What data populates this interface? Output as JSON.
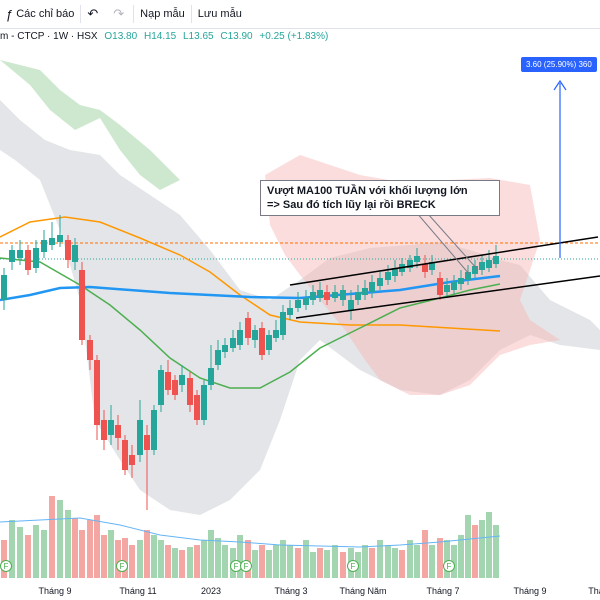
{
  "toolbar": {
    "alerts_label": "Các chỉ báo",
    "templates_label": "Nạp mẫu",
    "save_label": "Lưu mẫu"
  },
  "legend": {
    "symbol": "m - CTCP · 1W · HSX",
    "open": "O13.80",
    "high": "H14.15",
    "low": "L13.65",
    "close": "C13.90",
    "change": "+0.25 (+1.83%)"
  },
  "price_badge": "3.60 (25.90%) 360",
  "annotation": {
    "line1": "Vượt MA100 TUẦN với khối lượng lớn",
    "line2": "=> Sau đó tích lũy lại rồi BRECK"
  },
  "x_axis": [
    "Tháng 9",
    "Tháng 11",
    "2023",
    "Tháng 3",
    "Tháng Năm",
    "Tháng 7",
    "Tháng 9",
    "Thá"
  ],
  "event_marker_label": "F",
  "colors": {
    "up": "#26a69a",
    "down": "#ef5350",
    "accent": "#2962ff"
  }
}
